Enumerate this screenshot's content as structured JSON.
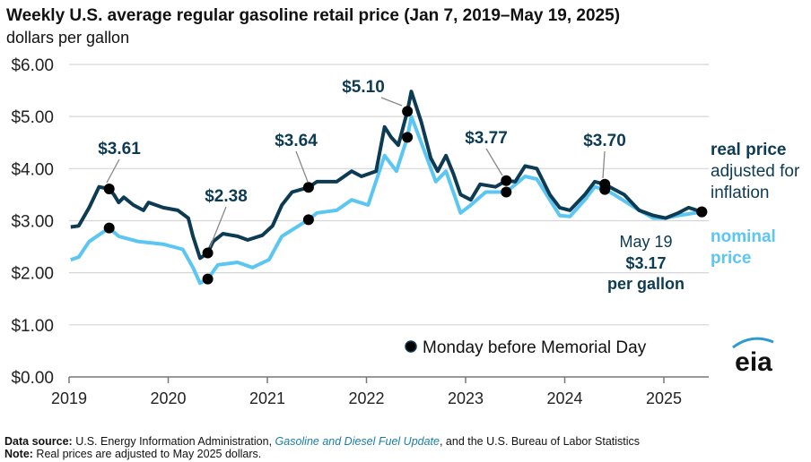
{
  "title": "Weekly U.S. average regular gasoline retail price (Jan 7, 2019–May 19, 2025)",
  "subtitle": "dollars per gallon",
  "footnote": {
    "source_label": "Data source:",
    "source_pre": " U.S. Energy Information Administration, ",
    "source_link": "Gasoline and Diesel Fuel Update",
    "source_post": ", and the U.S. Bureau of Labor Statistics",
    "note_label": "Note:",
    "note_text": " Real prices are adjusted to May 2025 dollars."
  },
  "logo": "eia",
  "chart_data": {
    "type": "line",
    "xlabel": "",
    "ylabel": "dollars per gallon",
    "xlim": [
      "2019-01-01",
      "2025-12-31"
    ],
    "ylim": [
      0,
      6
    ],
    "x_ticks": [
      "2019",
      "2020",
      "2021",
      "2022",
      "2023",
      "2024",
      "2025"
    ],
    "y_ticks": [
      "$0.00",
      "$1.00",
      "$2.00",
      "$3.00",
      "$4.00",
      "$5.00",
      "$6.00"
    ],
    "grid": true,
    "colors": {
      "real": "#0c3b53",
      "nominal": "#5bc6f2",
      "marker": "#000000",
      "label": "#0c3b53"
    },
    "series": [
      {
        "name": "real price adjusted for inflation",
        "name_lines": [
          "real price",
          "adjusted for",
          "inflation"
        ],
        "points": [
          [
            "2019-01-07",
            2.88
          ],
          [
            "2019-02-06",
            2.9
          ],
          [
            "2019-03-14",
            3.25
          ],
          [
            "2019-04-20",
            3.65
          ],
          [
            "2019-05-27",
            3.61
          ],
          [
            "2019-06-14",
            3.5
          ],
          [
            "2019-07-01",
            3.35
          ],
          [
            "2019-07-20",
            3.45
          ],
          [
            "2019-08-25",
            3.3
          ],
          [
            "2019-10-01",
            3.2
          ],
          [
            "2019-10-20",
            3.35
          ],
          [
            "2019-12-13",
            3.25
          ],
          [
            "2020-02-06",
            3.2
          ],
          [
            "2020-03-14",
            3.05
          ],
          [
            "2020-04-01",
            2.7
          ],
          [
            "2020-04-27",
            2.28
          ],
          [
            "2020-05-25",
            2.38
          ],
          [
            "2020-06-14",
            2.6
          ],
          [
            "2020-07-20",
            2.75
          ],
          [
            "2020-09-13",
            2.7
          ],
          [
            "2020-10-20",
            2.63
          ],
          [
            "2020-12-13",
            2.72
          ],
          [
            "2021-01-20",
            2.9
          ],
          [
            "2021-02-24",
            3.3
          ],
          [
            "2021-04-01",
            3.55
          ],
          [
            "2021-05-31",
            3.64
          ],
          [
            "2021-07-01",
            3.75
          ],
          [
            "2021-09-13",
            3.75
          ],
          [
            "2021-11-07",
            3.95
          ],
          [
            "2021-12-13",
            3.85
          ],
          [
            "2022-02-06",
            3.95
          ],
          [
            "2022-03-07",
            4.8
          ],
          [
            "2022-04-01",
            4.6
          ],
          [
            "2022-04-27",
            4.45
          ],
          [
            "2022-05-30",
            5.1
          ],
          [
            "2022-06-14",
            5.48
          ],
          [
            "2022-07-20",
            4.9
          ],
          [
            "2022-08-25",
            4.2
          ],
          [
            "2022-09-20",
            3.95
          ],
          [
            "2022-10-20",
            4.25
          ],
          [
            "2022-11-17",
            3.9
          ],
          [
            "2022-12-13",
            3.5
          ],
          [
            "2023-01-20",
            3.4
          ],
          [
            "2023-02-24",
            3.7
          ],
          [
            "2023-04-20",
            3.65
          ],
          [
            "2023-05-29",
            3.77
          ],
          [
            "2023-07-01",
            3.75
          ],
          [
            "2023-08-07",
            4.05
          ],
          [
            "2023-09-20",
            4.0
          ],
          [
            "2023-11-07",
            3.5
          ],
          [
            "2023-12-13",
            3.25
          ],
          [
            "2024-01-20",
            3.2
          ],
          [
            "2024-03-14",
            3.5
          ],
          [
            "2024-04-20",
            3.75
          ],
          [
            "2024-05-27",
            3.7
          ],
          [
            "2024-07-01",
            3.6
          ],
          [
            "2024-08-07",
            3.5
          ],
          [
            "2024-10-01",
            3.2
          ],
          [
            "2024-11-24",
            3.1
          ],
          [
            "2025-01-07",
            3.05
          ],
          [
            "2025-02-24",
            3.15
          ],
          [
            "2025-04-01",
            3.25
          ],
          [
            "2025-05-19",
            3.17
          ]
        ]
      },
      {
        "name": "nominal price",
        "name_lines": [
          "nominal",
          "price"
        ],
        "points": [
          [
            "2019-01-07",
            2.25
          ],
          [
            "2019-02-06",
            2.3
          ],
          [
            "2019-03-14",
            2.6
          ],
          [
            "2019-05-27",
            2.86
          ],
          [
            "2019-07-01",
            2.7
          ],
          [
            "2019-09-13",
            2.6
          ],
          [
            "2019-12-13",
            2.55
          ],
          [
            "2020-02-24",
            2.45
          ],
          [
            "2020-04-01",
            2.1
          ],
          [
            "2020-04-27",
            1.8
          ],
          [
            "2020-05-25",
            1.88
          ],
          [
            "2020-07-01",
            2.15
          ],
          [
            "2020-09-13",
            2.2
          ],
          [
            "2020-11-07",
            2.1
          ],
          [
            "2021-01-07",
            2.25
          ],
          [
            "2021-02-24",
            2.7
          ],
          [
            "2021-05-31",
            3.02
          ],
          [
            "2021-07-01",
            3.15
          ],
          [
            "2021-09-13",
            3.2
          ],
          [
            "2021-11-07",
            3.4
          ],
          [
            "2022-01-07",
            3.3
          ],
          [
            "2022-03-07",
            4.25
          ],
          [
            "2022-04-20",
            3.95
          ],
          [
            "2022-05-30",
            4.6
          ],
          [
            "2022-06-14",
            5.0
          ],
          [
            "2022-07-20",
            4.5
          ],
          [
            "2022-09-13",
            3.75
          ],
          [
            "2022-10-20",
            3.95
          ],
          [
            "2022-12-13",
            3.15
          ],
          [
            "2023-01-20",
            3.3
          ],
          [
            "2023-03-14",
            3.55
          ],
          [
            "2023-05-29",
            3.55
          ],
          [
            "2023-08-07",
            3.85
          ],
          [
            "2023-09-20",
            3.8
          ],
          [
            "2023-11-07",
            3.4
          ],
          [
            "2023-12-13",
            3.1
          ],
          [
            "2024-01-20",
            3.08
          ],
          [
            "2024-03-14",
            3.4
          ],
          [
            "2024-04-20",
            3.65
          ],
          [
            "2024-05-27",
            3.6
          ],
          [
            "2024-07-01",
            3.5
          ],
          [
            "2024-10-01",
            3.2
          ],
          [
            "2024-11-24",
            3.05
          ],
          [
            "2025-01-07",
            3.05
          ],
          [
            "2025-02-24",
            3.1
          ],
          [
            "2025-05-19",
            3.17
          ]
        ]
      }
    ],
    "markers": [
      {
        "date": "2019-05-27",
        "real": 3.61,
        "nominal": 2.86,
        "label": "$3.61"
      },
      {
        "date": "2020-05-25",
        "real": 2.38,
        "nominal": 1.88,
        "label": "$2.38"
      },
      {
        "date": "2021-05-31",
        "real": 3.64,
        "nominal": 3.02,
        "label": "$3.64"
      },
      {
        "date": "2022-05-30",
        "real": 5.1,
        "nominal": 4.6,
        "label": "$5.10"
      },
      {
        "date": "2023-05-29",
        "real": 3.77,
        "nominal": 3.55,
        "label": "$3.77"
      },
      {
        "date": "2024-05-27",
        "real": 3.7,
        "nominal": 3.6,
        "label": "$3.70"
      },
      {
        "date": "2025-05-19",
        "real": 3.17,
        "nominal": 3.17,
        "label": ""
      }
    ],
    "legend": "Monday before Memorial Day",
    "latest": {
      "date": "May 19",
      "value": "$3.17",
      "unit": "per gallon"
    }
  }
}
